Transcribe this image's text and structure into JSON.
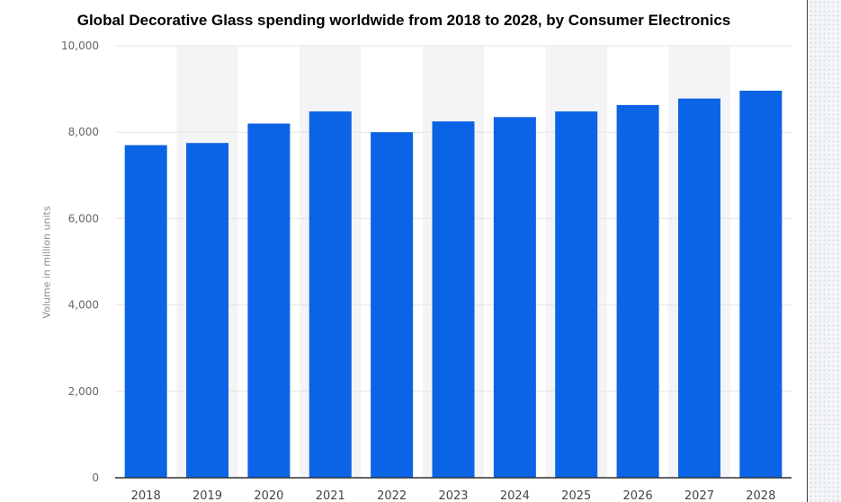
{
  "chart_data": {
    "type": "bar",
    "title": "Global Decorative Glass spending worldwide from 2018 to 2028, by Consumer Electronics",
    "xlabel": "",
    "ylabel": "Volume in million units",
    "categories": [
      "2018",
      "2019",
      "2020",
      "2021",
      "2022",
      "2023",
      "2024",
      "2025",
      "2026",
      "2027",
      "2028"
    ],
    "values": [
      7700,
      7750,
      8200,
      8480,
      8000,
      8250,
      8350,
      8480,
      8630,
      8780,
      8960
    ],
    "ylim": [
      0,
      10000
    ],
    "yticks": [
      0,
      2000,
      4000,
      6000,
      8000,
      10000
    ],
    "ytick_labels": [
      "0",
      "2,000",
      "4,000",
      "6,000",
      "8,000",
      "10,000"
    ],
    "grid": true,
    "colors": {
      "bar": "#0b63e5",
      "band": "#f4f4f6",
      "gridline": "#e4e4e4",
      "axis": "#333333"
    }
  }
}
